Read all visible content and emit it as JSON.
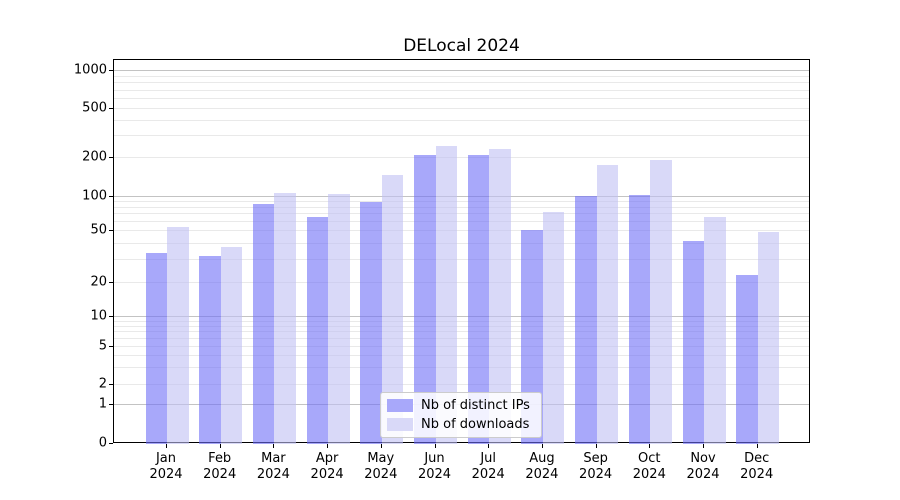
{
  "figure": {
    "background": "#ffffff"
  },
  "chart_data": {
    "type": "bar",
    "title": "DELocal 2024",
    "xlabel": "",
    "ylabel": "",
    "yscale": "symlog",
    "ylim": [
      0,
      1000
    ],
    "grid": true,
    "legend_position": "lower center",
    "y_tick_values": [
      0,
      1,
      2,
      5,
      10,
      20,
      50,
      100,
      200,
      500,
      1000
    ],
    "y_tick_labels": [
      "0",
      "1",
      "2",
      "5",
      "10",
      "20",
      "50",
      "100",
      "200",
      "500",
      "1000"
    ],
    "major_grid_values": [
      1,
      10,
      100,
      1000
    ],
    "minor_grid_values": [
      2,
      3,
      4,
      5,
      6,
      7,
      8,
      9,
      20,
      30,
      40,
      60,
      70,
      80,
      90,
      200,
      300,
      400,
      600,
      700,
      800,
      900,
      500,
      50
    ],
    "categories": [
      "Jan",
      "Feb",
      "Mar",
      "Apr",
      "May",
      "Jun",
      "Jul",
      "Aug",
      "Sep",
      "Oct",
      "Nov",
      "Dec"
    ],
    "x_tick_year": "2024",
    "series": [
      {
        "name": "Nb of distinct IPs",
        "fill": "rgba(110,110,247,0.6)",
        "legend_color": "#a8a8fa",
        "values": [
          34,
          32,
          86,
          66,
          90,
          212,
          210,
          51,
          102,
          104,
          42,
          23
        ]
      },
      {
        "name": "Nb of downloads",
        "fill": "rgba(192,192,243,0.6)",
        "legend_color": "#d9d9f8",
        "values": [
          54,
          38,
          108,
          106,
          148,
          250,
          237,
          74,
          178,
          192,
          66,
          49
        ]
      }
    ]
  },
  "legend": {
    "items": [
      {
        "label": "Nb of distinct IPs",
        "color": "#a8a8fa"
      },
      {
        "label": "Nb of downloads",
        "color": "#d9d9f8"
      }
    ]
  }
}
